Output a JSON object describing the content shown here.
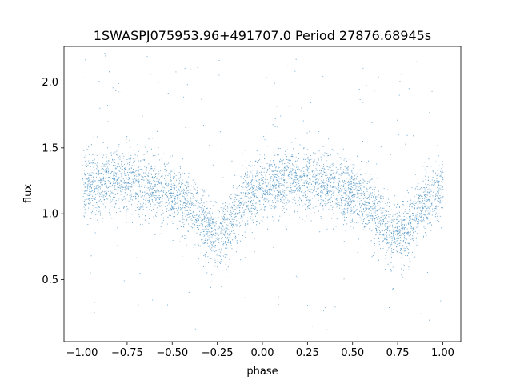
{
  "chart_data": {
    "type": "scatter",
    "title": "1SWASPJ075953.96+491707.0 Period 27876.68945s",
    "xlabel": "phase",
    "ylabel": "flux",
    "xlim": [
      -1.1,
      1.1
    ],
    "ylim": [
      0.03,
      2.27
    ],
    "xticks": [
      -1.0,
      -0.75,
      -0.5,
      -0.25,
      0.0,
      0.25,
      0.5,
      0.75,
      1.0
    ],
    "xtick_labels": [
      "−1.00",
      "−0.75",
      "−0.50",
      "−0.25",
      "0.00",
      "0.25",
      "0.50",
      "0.75",
      "1.00"
    ],
    "yticks": [
      0.5,
      1.0,
      1.5,
      2.0
    ],
    "ytick_labels": [
      "0.5",
      "1.0",
      "1.5",
      "2.0"
    ],
    "grid": false,
    "series": [
      {
        "color": "#1f77b4",
        "profile": {
          "phase": [
            -1.0,
            -0.9,
            -0.8,
            -0.7,
            -0.6,
            -0.5,
            -0.45,
            -0.4,
            -0.35,
            -0.3,
            -0.27,
            -0.25,
            -0.23,
            -0.2,
            -0.15,
            -0.1,
            -0.05,
            0.0,
            0.1,
            0.2,
            0.3,
            0.4,
            0.5,
            0.55,
            0.6,
            0.65,
            0.7,
            0.73,
            0.75,
            0.77,
            0.8,
            0.85,
            0.9,
            0.95,
            1.0
          ],
          "median_flux": [
            1.2,
            1.24,
            1.25,
            1.24,
            1.2,
            1.15,
            1.11,
            1.05,
            0.97,
            0.88,
            0.84,
            0.83,
            0.85,
            0.9,
            1.0,
            1.1,
            1.17,
            1.21,
            1.25,
            1.26,
            1.25,
            1.21,
            1.15,
            1.1,
            1.04,
            0.96,
            0.87,
            0.84,
            0.83,
            0.85,
            0.9,
            1.0,
            1.1,
            1.16,
            1.2
          ]
        }
      }
    ]
  }
}
